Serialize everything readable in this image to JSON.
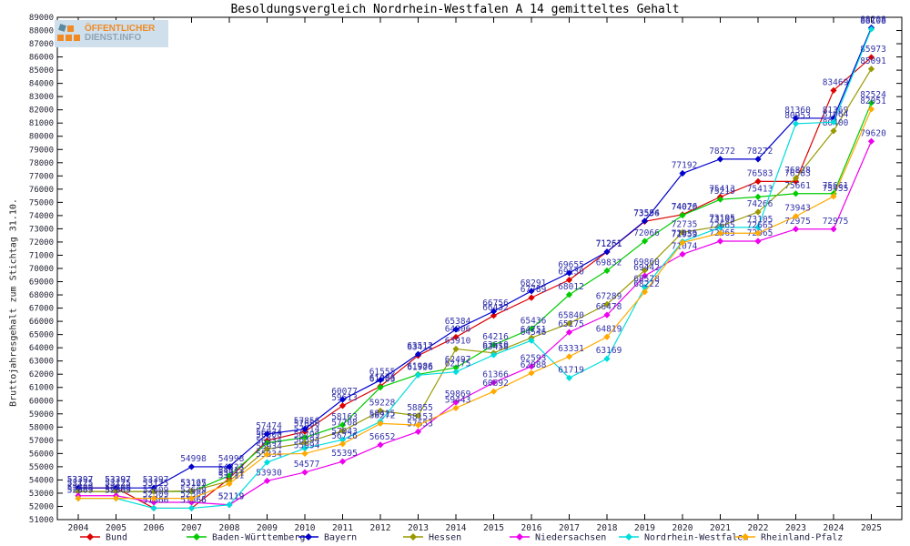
{
  "logo": {
    "line1": "ÖFFENTLICHER",
    "line2": "DIENST.INFO"
  },
  "chart_data": {
    "type": "line",
    "title": "Besoldungsvergleich Nordrhein-Westfalen A 14 gemitteltes Gehalt",
    "ylabel": "Bruttojahresgehalt zum Stichtag 31.10.",
    "xlabel": "",
    "x": [
      2004,
      2005,
      2006,
      2007,
      2008,
      2009,
      2010,
      2011,
      2012,
      2013,
      2014,
      2015,
      2016,
      2017,
      2018,
      2019,
      2020,
      2021,
      2022,
      2023,
      2024,
      2025
    ],
    "ylim": [
      51000,
      89000
    ],
    "ytick_step": 1000,
    "grid": false,
    "legend_position": "bottom",
    "label_color": "#3333aa",
    "axis_text_color": "#222233",
    "series": [
      {
        "name": "Bund",
        "color": "#dd0000",
        "values": [
          53397,
          53397,
          51866,
          51866,
          54113,
          56974,
          57656,
          59613,
          61086,
          63411,
          64806,
          66432,
          67789,
          69130,
          71251,
          73556,
          74076,
          75413,
          76583,
          76583,
          83469,
          85973
        ]
      },
      {
        "name": "Baden-Württemberg",
        "color": "#00cc00",
        "values": [
          53125,
          53125,
          53125,
          53125,
          54323,
          56800,
          57214,
          58163,
          61003,
          61986,
          62497,
          64216,
          65436,
          68012,
          69832,
          72066,
          74020,
          75219,
          75413,
          75661,
          75661,
          82524
        ]
      },
      {
        "name": "Bayern",
        "color": "#0000cc",
        "values": [
          53397,
          53397,
          53397,
          54998,
          54998,
          57474,
          57856,
          60077,
          61555,
          63512,
          65384,
          66756,
          68291,
          69655,
          71261,
          73594,
          77192,
          78272,
          78272,
          81360,
          81369,
          88208
        ]
      },
      {
        "name": "Hessen",
        "color": "#999900",
        "values": [
          53125,
          53125,
          53125,
          53167,
          53911,
          56334,
          56799,
          57708,
          59228,
          58855,
          63910,
          63610,
          64751,
          65840,
          67289,
          69860,
          72735,
          73195,
          74266,
          76828,
          80400,
          85091
        ]
      },
      {
        "name": "Niedersachsen",
        "color": "#ee00ee",
        "values": [
          52809,
          52809,
          52309,
          52309,
          52119,
          53930,
          54577,
          55395,
          56652,
          57653,
          59869,
          61366,
          62593,
          65175,
          66478,
          69442,
          71074,
          72065,
          72065,
          72975,
          72975,
          79620
        ]
      },
      {
        "name": "Nordrhein-Westfalen",
        "color": "#00dddd",
        "values": [
          52609,
          52609,
          51866,
          51866,
          52119,
          55334,
          56394,
          57043,
          58415,
          61926,
          62175,
          63458,
          64546,
          61719,
          63169,
          68578,
          72035,
          73105,
          73105,
          80953,
          81064,
          88108
        ]
      },
      {
        "name": "Rheinland-Pfalz",
        "color": "#ffaa00",
        "values": [
          52609,
          52609,
          52609,
          52609,
          53711,
          55934,
          55994,
          56726,
          58272,
          58153,
          59443,
          60692,
          62088,
          63331,
          64819,
          68222,
          71959,
          72665,
          72665,
          73943,
          75455,
          82051
        ]
      }
    ]
  }
}
